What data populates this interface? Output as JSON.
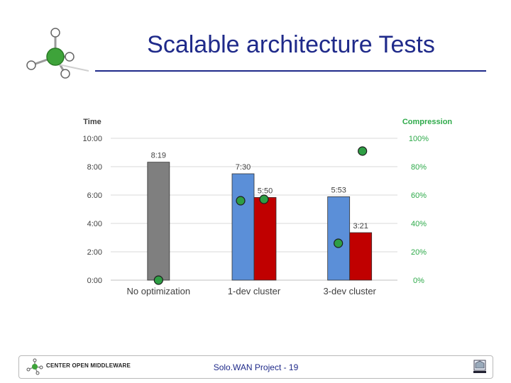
{
  "slide": {
    "title": "Scalable architecture Tests"
  },
  "footer": {
    "logo_text": "CENTER OPEN MIDDLEWARE",
    "center_text": "Solo.WAN Project - 19"
  },
  "chart_data": {
    "type": "bar",
    "categories": [
      "No optimization",
      "1-dev cluster",
      "3-dev cluster"
    ],
    "y_left_label": "Time",
    "y_right_label": "Compression",
    "y_left_ticks": [
      "0:00",
      "2:00",
      "4:00",
      "6:00",
      "8:00",
      "10:00"
    ],
    "y_right_ticks": [
      "0%",
      "20%",
      "40%",
      "60%",
      "80%",
      "100%"
    ],
    "ylim_minutes": [
      0,
      600
    ],
    "ylim_percent": [
      0,
      100
    ],
    "grid": true,
    "bars": [
      {
        "category": "No optimization",
        "minutes": 499,
        "label": "8:19",
        "color": "#7f7f7f"
      },
      {
        "category": "1-dev cluster",
        "minutes": 450,
        "label": "7:30",
        "color": "#5b8fd8"
      },
      {
        "category": "1-dev cluster",
        "minutes": 350,
        "label": "5:50",
        "color": "#c00000"
      },
      {
        "category": "3-dev cluster",
        "minutes": 353,
        "label": "5:53",
        "color": "#5b8fd8"
      },
      {
        "category": "3-dev cluster",
        "minutes": 201,
        "label": "3:21",
        "color": "#c00000"
      }
    ],
    "compression_points": [
      {
        "category": "No optimization",
        "percent": 0
      },
      {
        "category": "1-dev cluster",
        "percent": 56
      },
      {
        "category": "1-dev cluster",
        "percent": 57
      },
      {
        "category": "3-dev cluster",
        "percent": 26
      },
      {
        "category": "3-dev cluster",
        "percent": 91
      }
    ],
    "colors": {
      "compression": "#2eaa4a",
      "point_fill": "#2e9e44",
      "axis_text": "#404040",
      "grid": "#d9d9d9"
    }
  }
}
